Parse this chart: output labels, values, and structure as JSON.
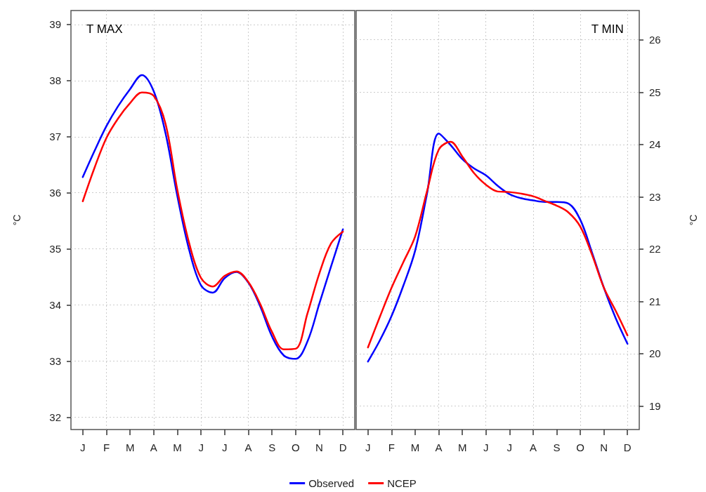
{
  "chart_data": [
    {
      "type": "line",
      "title": "T MAX",
      "ylabel": "°C",
      "ylim": [
        31.78,
        39.25
      ],
      "yticks": [
        32,
        33,
        34,
        35,
        36,
        37,
        38,
        39
      ],
      "categories": [
        null,
        "J",
        null,
        "F",
        null,
        "M",
        null,
        "A",
        null,
        "M",
        null,
        "J",
        null,
        "J",
        null,
        "A",
        null,
        "S",
        null,
        "O",
        null,
        "N",
        null,
        "D",
        null
      ],
      "grid": true,
      "legend": "bottom",
      "marker": "none",
      "line_style": "solid",
      "series": [
        {
          "name": "Observed",
          "color": "#0000ff",
          "values": [
            null,
            36.28,
            36.75,
            37.19,
            37.55,
            37.85,
            38.1,
            37.81,
            37.06,
            35.94,
            34.98,
            34.35,
            34.22,
            34.48,
            34.59,
            34.4,
            33.98,
            33.44,
            33.1,
            33.04,
            33.35,
            34.02,
            34.69,
            35.35,
            null
          ]
        },
        {
          "name": "NCEP",
          "color": "#ff0000",
          "values": [
            null,
            35.85,
            36.45,
            36.98,
            37.33,
            37.6,
            37.79,
            37.73,
            37.23,
            36.05,
            35.1,
            34.48,
            34.33,
            34.52,
            34.6,
            34.41,
            34.02,
            33.52,
            33.21,
            33.22,
            33.85,
            34.56,
            35.1,
            35.31,
            null
          ]
        }
      ]
    },
    {
      "type": "line",
      "title": "T MIN",
      "ylabel": "°C",
      "ylim": [
        18.55,
        26.56
      ],
      "yticks": [
        19,
        20,
        21,
        22,
        23,
        24,
        25,
        26
      ],
      "categories": [
        null,
        "J",
        null,
        "F",
        null,
        "M",
        null,
        "A",
        null,
        "M",
        null,
        "J",
        null,
        "J",
        null,
        "A",
        null,
        "S",
        null,
        "O",
        null,
        "N",
        null,
        "D",
        null
      ],
      "grid": true,
      "marker": "none",
      "line_style": "solid",
      "series": [
        {
          "color": "#0000ff",
          "values": [
            null,
            19.85,
            20.25,
            20.72,
            21.3,
            21.97,
            23.05,
            24.21,
            23.99,
            23.72,
            23.54,
            23.41,
            23.21,
            23.05,
            22.97,
            22.93,
            22.9,
            22.9,
            22.87,
            22.56,
            21.93,
            21.26,
            20.68,
            20.19,
            null
          ]
        },
        {
          "color": "#ff0000",
          "values": [
            null,
            20.12,
            20.7,
            21.26,
            21.75,
            22.24,
            23.1,
            23.9,
            24.05,
            23.77,
            23.45,
            23.23,
            23.1,
            23.09,
            23.06,
            23.01,
            22.92,
            22.83,
            22.7,
            22.43,
            21.89,
            21.26,
            20.82,
            20.35,
            null
          ]
        }
      ]
    }
  ]
}
